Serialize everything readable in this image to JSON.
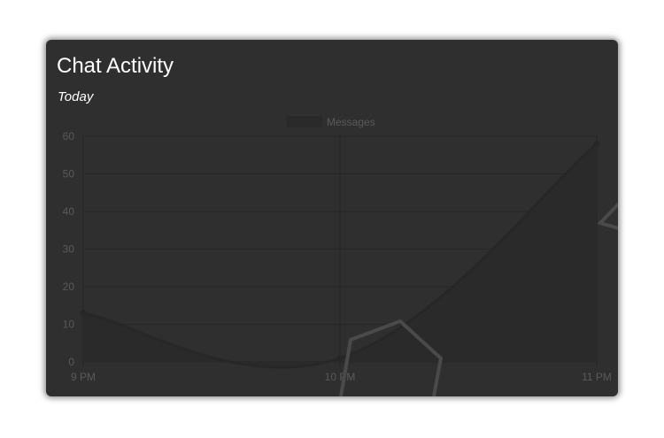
{
  "card": {
    "title": "Chat Activity",
    "subtitle": "Today"
  },
  "chart_data": {
    "type": "line",
    "categories": [
      "9 PM",
      "10 PM",
      "11 PM"
    ],
    "series": [
      {
        "name": "Messages",
        "values": [
          13,
          1,
          58
        ]
      }
    ],
    "ylim": [
      0,
      60
    ],
    "yticks": [
      0,
      10,
      20,
      30,
      40,
      50,
      60
    ],
    "grid": true,
    "legend": "top-center",
    "fill": true,
    "colors": {
      "card_background": "#2f2f2f",
      "grid": "#262626",
      "line": "#272727",
      "area": "#2a2a2a",
      "tick_text": "#5a5a5a"
    }
  }
}
